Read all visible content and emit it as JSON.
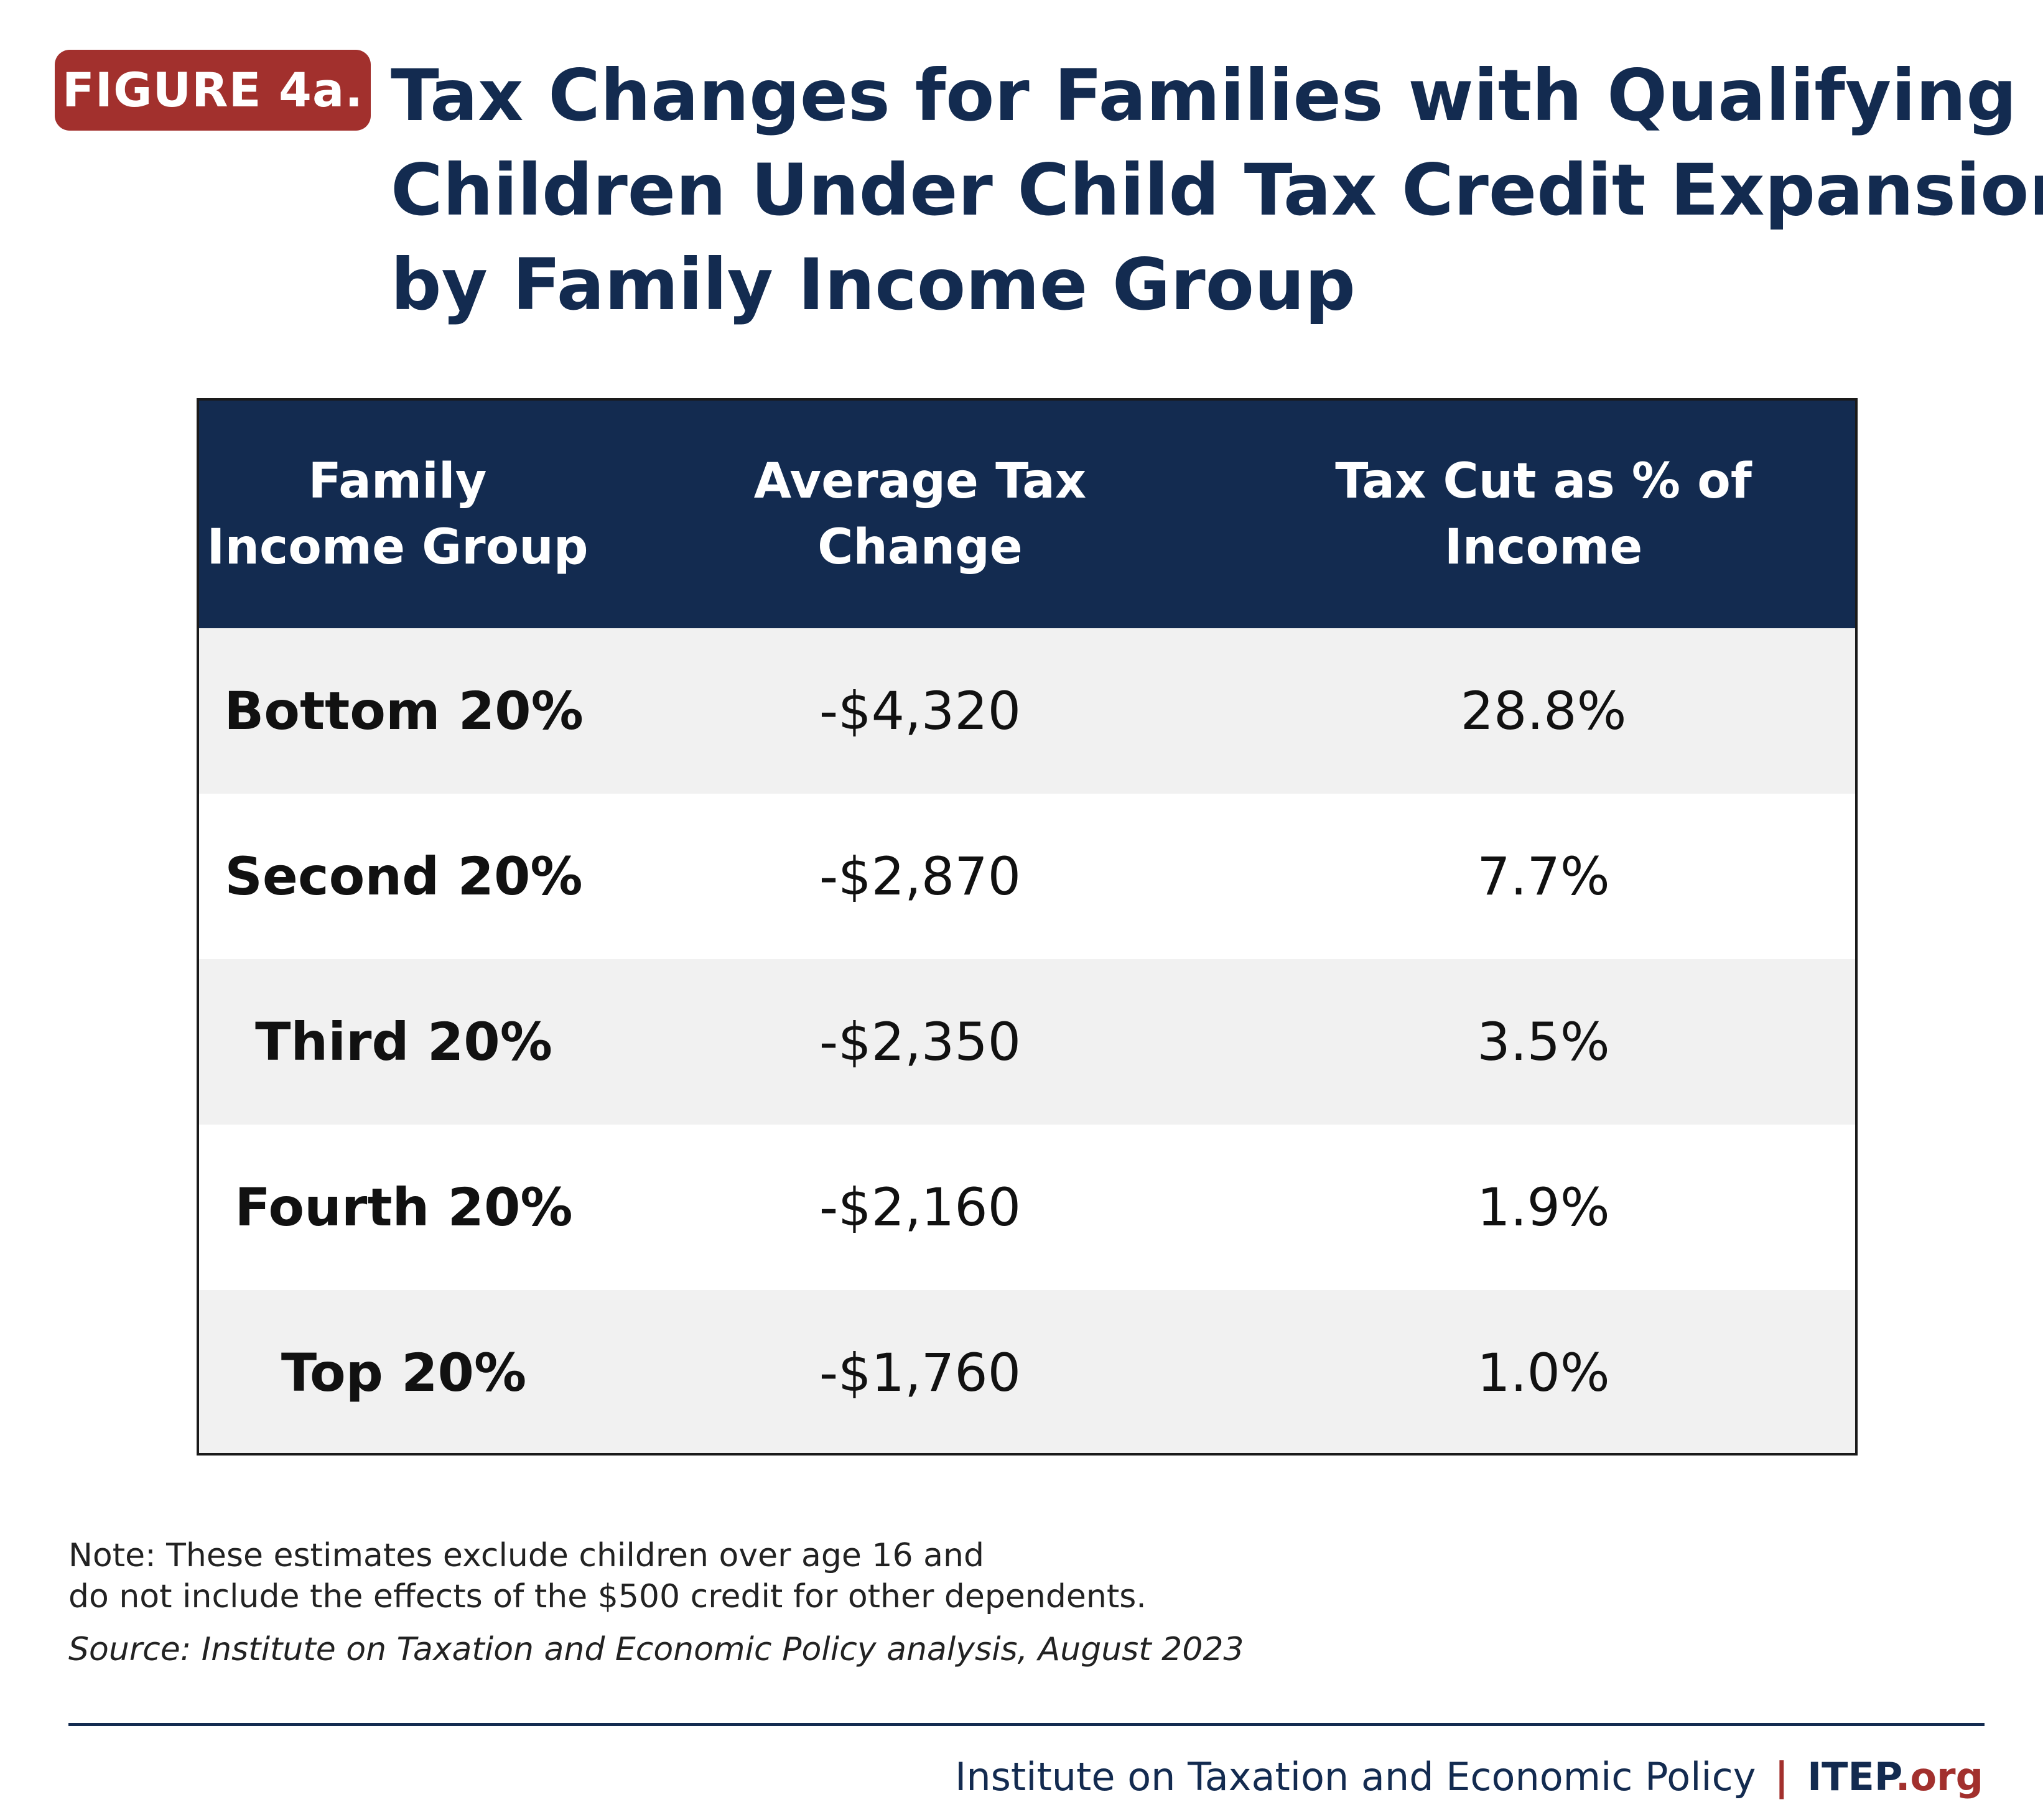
{
  "figure_label": "FIGURE 4a.",
  "title_lines": [
    "Tax Changes for Families with Qualifying",
    "Children Under Child Tax Credit Expansion,",
    "by Family Income Group"
  ],
  "chart_data": {
    "type": "table",
    "title": "Tax Changes for Families with Qualifying Children Under Child Tax Credit Expansion, by Family Income Group",
    "columns": [
      {
        "line1": "Family",
        "line2": "Income Group"
      },
      {
        "line1": "Average Tax",
        "line2": "Change"
      },
      {
        "line1": "Tax Cut as % of",
        "line2": "Income"
      }
    ],
    "rows": [
      {
        "group": "Bottom 20%",
        "avg_tax_change": "-$4,320",
        "pct_income": "28.8%"
      },
      {
        "group": "Second 20%",
        "avg_tax_change": "-$2,870",
        "pct_income": "7.7%"
      },
      {
        "group": "Third 20%",
        "avg_tax_change": "-$2,350",
        "pct_income": "3.5%"
      },
      {
        "group": "Fourth 20%",
        "avg_tax_change": "-$2,160",
        "pct_income": "1.9%"
      },
      {
        "group": "Top 20%",
        "avg_tax_change": "-$1,760",
        "pct_income": "1.0%"
      }
    ]
  },
  "note_lines": [
    "Note: These estimates exclude children over age 16 and",
    "do not include the effects of the $500 credit for other dependents."
  ],
  "source": "Source: Institute on Taxation and Economic Policy analysis, August 2023",
  "footer": {
    "org": "Institute on Taxation and Economic Policy",
    "separator": "|",
    "brand": "ITEP",
    "brand_suffix": ".org"
  },
  "colors": {
    "navy": "#132b50",
    "red": "#a2302d",
    "row_alt": "#f1f1f1"
  }
}
